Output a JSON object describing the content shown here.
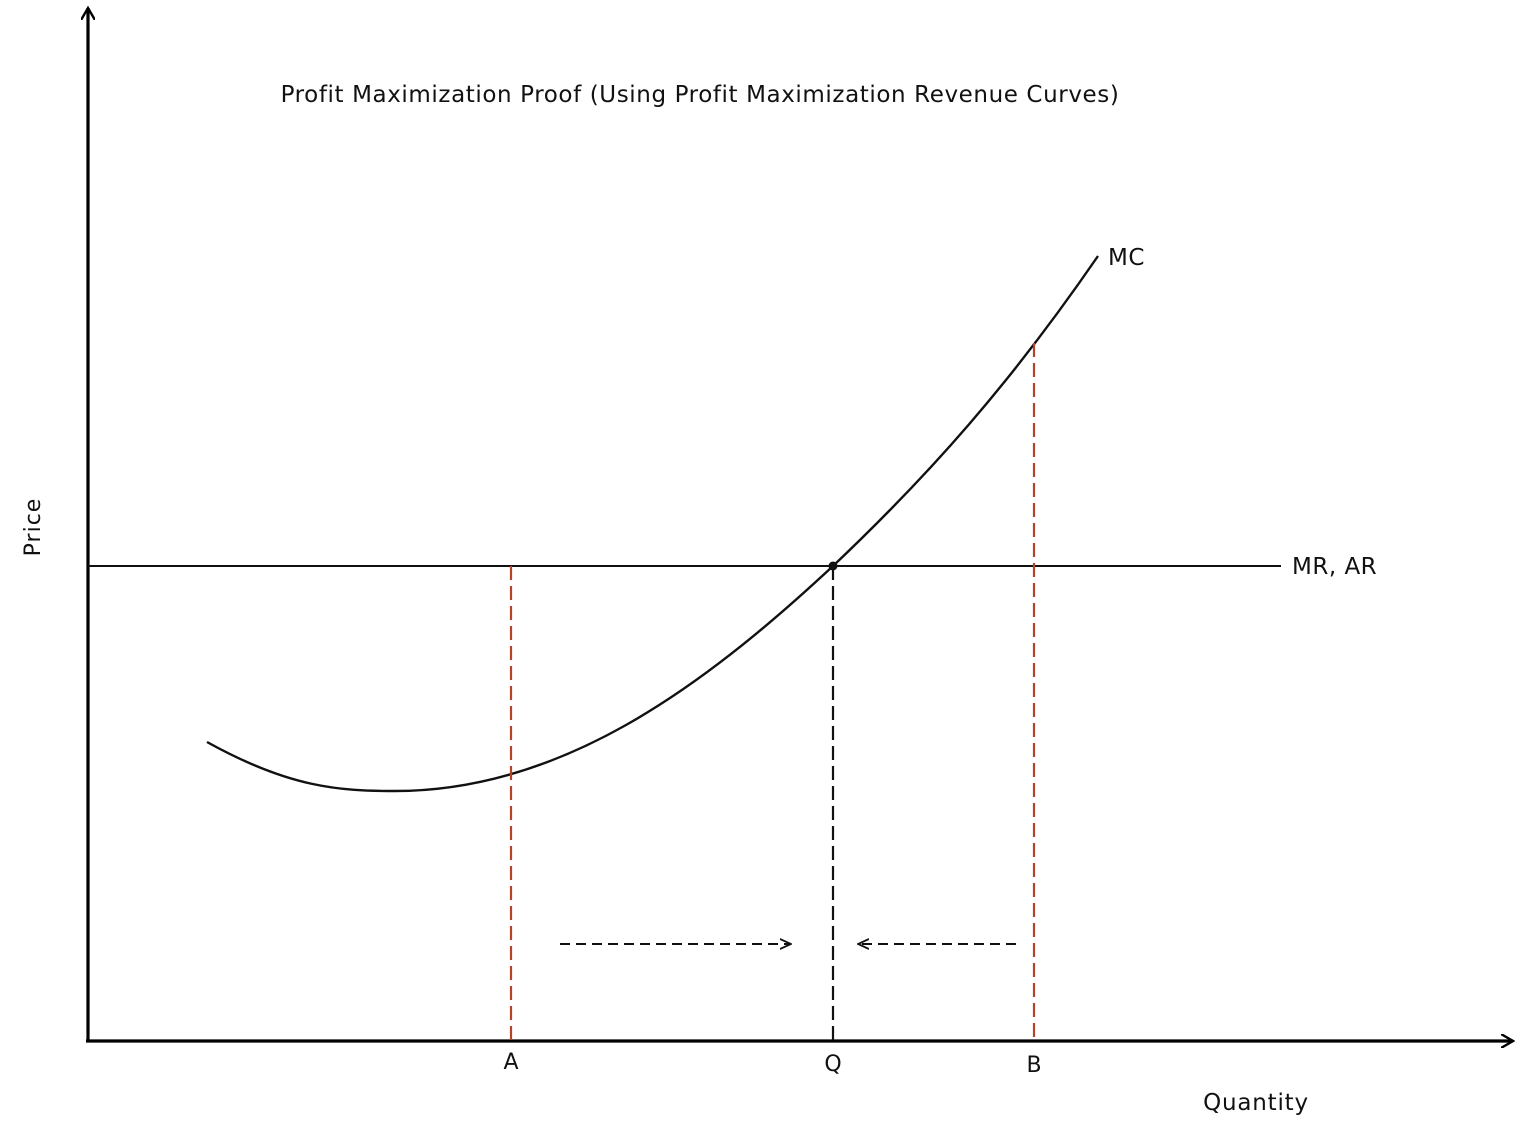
{
  "title": "Profit Maximization Proof (Using Profit Maximization Revenue Curves)",
  "axes": {
    "y_label": "Price",
    "x_label": "Quantity"
  },
  "curves": {
    "mc_label": "MC",
    "mr_label": "MR, AR"
  },
  "quantities": {
    "a_label": "A",
    "q_label": "Q",
    "b_label": "B"
  },
  "colors": {
    "axis": "#000000",
    "curve": "#111111",
    "quantity_marker": "#b5432a",
    "optimum_marker": "#111111"
  }
}
